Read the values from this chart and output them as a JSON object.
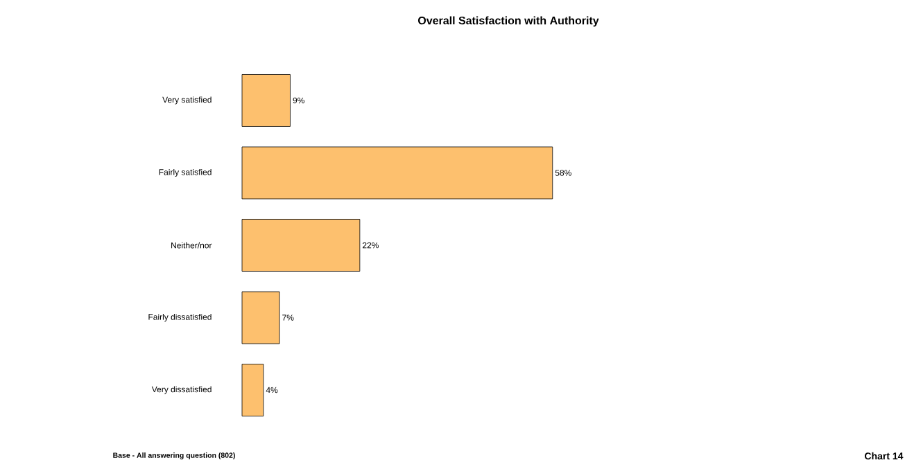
{
  "chart_data": {
    "type": "bar",
    "orientation": "horizontal",
    "title": "Overall Satisfaction with Authority",
    "categories": [
      "Very satisfied",
      "Fairly satisfied",
      "Neither/nor",
      "Fairly dissatisfied",
      "Very dissatisfied"
    ],
    "values": [
      9,
      58,
      22,
      7,
      4
    ],
    "value_labels": [
      "9%",
      "58%",
      "22%",
      "7%",
      "4%"
    ],
    "color": "#fdc06e",
    "annotations": [
      "Base - All answering question  (802)",
      "Chart 14"
    ]
  }
}
